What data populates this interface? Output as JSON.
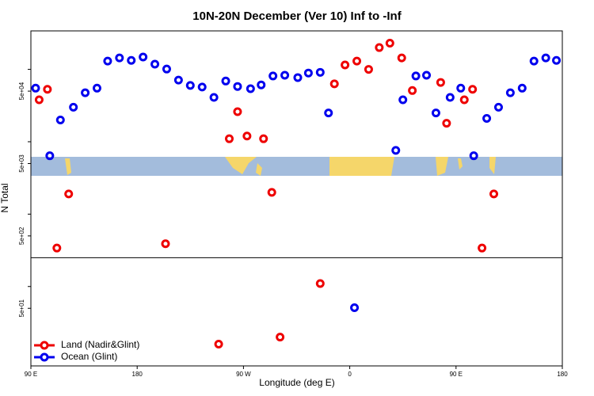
{
  "chart_data": {
    "type": "scatter",
    "title": "10N-20N December (Ver 10)   Inf to -Inf",
    "x_label": "Longitude (deg E)",
    "y_label": "N Total",
    "xlim": [
      90,
      540
    ],
    "xticks": [
      {
        "value": 90,
        "label": "90 E"
      },
      180,
      {
        "value": 270,
        "label": "90 W"
      },
      {
        "value": 360,
        "label": "0"
      },
      {
        "value": 450,
        "label": "90 E"
      },
      {
        "value": 540,
        "label": "180"
      }
    ],
    "ylim": [
      8,
      340000
    ],
    "log_y": true,
    "yticks": [
      {
        "value": 50,
        "label": "5e+01"
      },
      {
        "value": 500,
        "label": "5e+02"
      },
      {
        "value": 5000,
        "label": "5e+03"
      },
      {
        "value": 50000,
        "label": "5e+04"
      }
    ],
    "yminor": [
      100,
      1000,
      10000,
      100000
    ],
    "hline": 250,
    "legend": "bottom-left",
    "series": [
      {
        "name": "Land (Nadir&Glint)",
        "color": "#ee0000",
        "x": [
          97,
          104,
          112,
          122,
          204,
          249,
          258,
          265,
          273,
          287,
          294,
          301,
          335,
          347,
          356,
          366,
          376,
          385,
          394,
          404,
          413,
          437,
          442,
          457,
          464,
          472,
          482
        ],
        "values": [
          38000,
          53000,
          340,
          1900,
          390,
          16,
          11000,
          26000,
          12000,
          11000,
          2000,
          20,
          110,
          63000,
          115000,
          130000,
          100000,
          200000,
          230000,
          144000,
          51000,
          66000,
          18000,
          38000,
          53000,
          340,
          1900
        ]
      },
      {
        "name": "Ocean (Glint)",
        "color": "#0000ee",
        "x": [
          94,
          106,
          115,
          126,
          136,
          146,
          155,
          165,
          175,
          185,
          195,
          205,
          215,
          225,
          235,
          245,
          255,
          265,
          276,
          285,
          295,
          305,
          316,
          325,
          335,
          342,
          364,
          399,
          405,
          416,
          425,
          433,
          445,
          454,
          465,
          476,
          486,
          496,
          506,
          516,
          526,
          535
        ],
        "values": [
          55000,
          6400,
          20000,
          30000,
          47500,
          55000,
          130000,
          144000,
          133000,
          148000,
          118000,
          101000,
          71000,
          60000,
          57000,
          41000,
          69000,
          58000,
          54000,
          61000,
          81000,
          83000,
          77000,
          89000,
          91000,
          25000,
          51,
          7600,
          38000,
          81000,
          83000,
          25000,
          41000,
          55000,
          6400,
          21000,
          30000,
          47500,
          55000,
          130000,
          144000,
          133000
        ]
      }
    ]
  }
}
